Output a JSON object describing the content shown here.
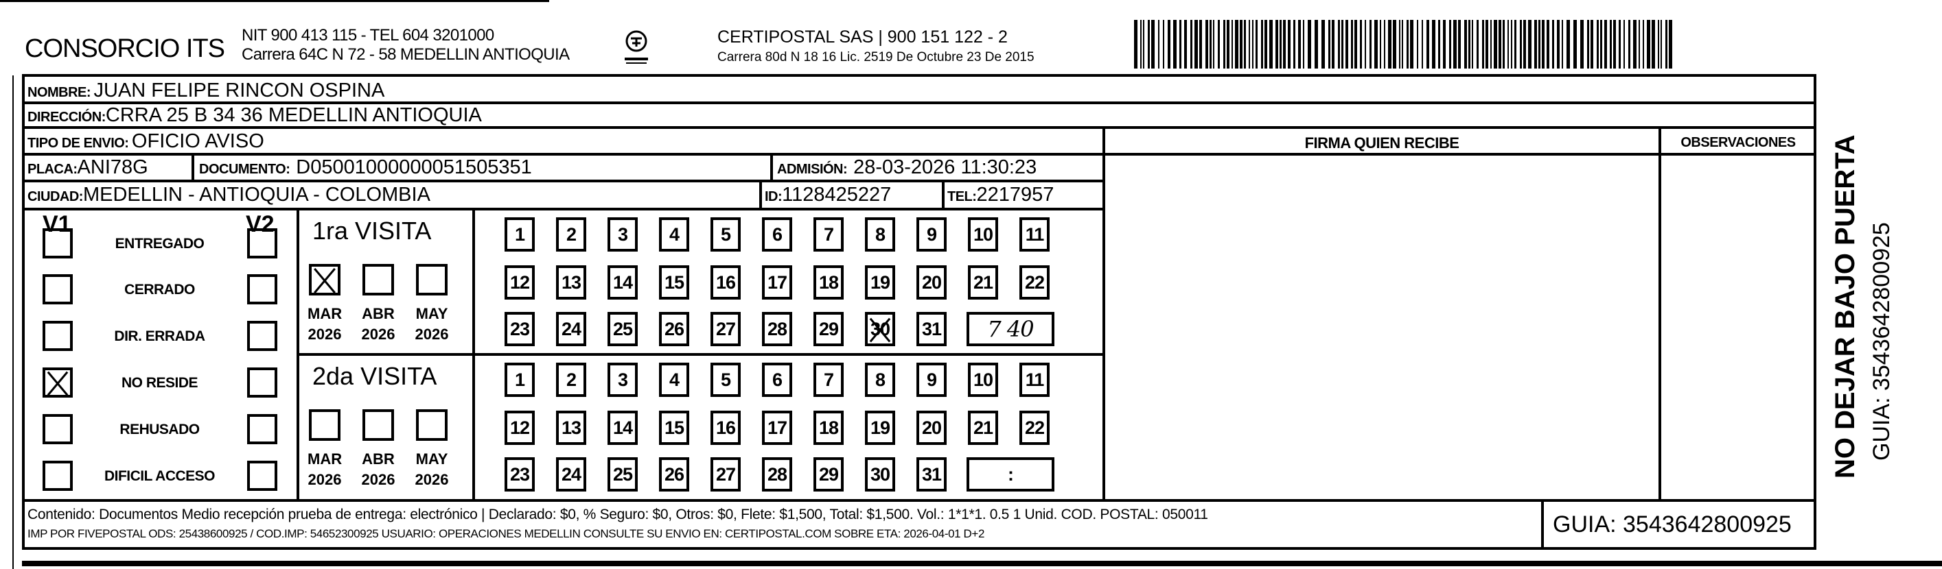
{
  "header": {
    "company": "CONSORCIO ITS",
    "company_line1": "NIT 900 413 115 - TEL 604 3201000",
    "company_line2": "Carrera 64C N 72 - 58 MEDELLIN ANTIOQUIA",
    "logo_text": "CERTIPOSTAL",
    "carrier_line1": "CERTIPOSTAL SAS | 900 151 122 - 2",
    "carrier_line2": "Carrera 80d N 18 16  Lic. 2519 De Octubre 23 De 2015",
    "barcode_value": "3543642800925"
  },
  "fields": {
    "nombre_label": "NOMBRE:",
    "nombre": "JUAN FELIPE RINCON OSPINA",
    "direccion_label": "DIRECCIÓN:",
    "direccion": "CRRA 25 B 34 36 MEDELLIN ANTIOQUIA",
    "tipo_label": "TIPO DE ENVIO:",
    "tipo": "OFICIO AVISO",
    "placa_label": "PLACA:",
    "placa": "ANI78G",
    "documento_label": "DOCUMENTO:",
    "documento": "D05001000000051505351",
    "admision_label": "ADMISIÓN:",
    "admision": "28-03-2026 11:30:23",
    "ciudad_label": "CIUDAD:",
    "ciudad": "MEDELLIN - ANTIOQUIA - COLOMBIA",
    "id_label": "ID:",
    "id": "1128425227",
    "tel_label": "TEL:",
    "tel": "2217957"
  },
  "columns": {
    "firma": "FIRMA QUIEN RECIBE",
    "observaciones": "OBSERVACIONES"
  },
  "status": {
    "v1": "V1",
    "v2": "V2",
    "items": [
      {
        "label": "ENTREGADO",
        "v1": false,
        "v2": false
      },
      {
        "label": "CERRADO",
        "v1": false,
        "v2": false
      },
      {
        "label": "DIR. ERRADA",
        "v1": false,
        "v2": false
      },
      {
        "label": "NO RESIDE",
        "v1": true,
        "v2": false
      },
      {
        "label": "REHUSADO",
        "v1": false,
        "v2": false
      },
      {
        "label": "DIFICIL ACCESO",
        "v1": false,
        "v2": false
      }
    ]
  },
  "visits": [
    {
      "title": "1ra VISITA",
      "months": [
        {
          "m": "MAR",
          "y": "2026",
          "checked": true
        },
        {
          "m": "ABR",
          "y": "2026",
          "checked": false
        },
        {
          "m": "MAY",
          "y": "2026",
          "checked": false
        }
      ],
      "day_marked": 30,
      "time": "7 40"
    },
    {
      "title": "2da VISITA",
      "months": [
        {
          "m": "MAR",
          "y": "2026",
          "checked": false
        },
        {
          "m": "ABR",
          "y": "2026",
          "checked": false
        },
        {
          "m": "MAY",
          "y": "2026",
          "checked": false
        }
      ],
      "day_marked": null,
      "time": ":"
    }
  ],
  "footer": {
    "line1": "Contenido: Documentos Medio recepción prueba de entrega: electrónico | Declarado: $0, % Seguro: $0, Otros: $0, Flete: $1,500, Total: $1,500. Vol.: 1*1*1. 0.5  1 Unid. COD. POSTAL: 050011",
    "line2": "IMP POR FIVEPOSTAL ODS: 25438600925 / COD.IMP: 54652300925 USUARIO: OPERACIONES MEDELLIN CONSULTE SU ENVIO EN: CERTIPOSTAL.COM SOBRE ETA: 2026-04-01 D+2",
    "guia": "GUIA: 3543642800925"
  },
  "side": {
    "warning": "NO DEJAR BAJO PUERTA",
    "guia": "GUIA: 3543642800925"
  }
}
